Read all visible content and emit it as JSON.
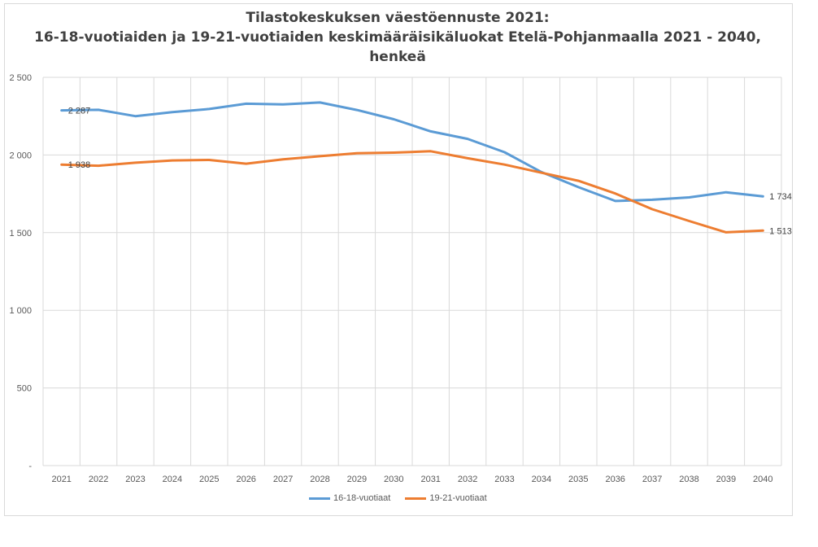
{
  "chart_data": {
    "type": "line",
    "title_lines": [
      "Tilastokeskuksen väestöennuste 2021:",
      "16-18-vuotiaiden ja 19-21-vuotiaiden keskimääräisikäluokat Etelä-Pohjanmaalla 2021 - 2040,",
      "henkeä"
    ],
    "categories": [
      "2021",
      "2022",
      "2023",
      "2024",
      "2025",
      "2026",
      "2027",
      "2028",
      "2029",
      "2030",
      "2031",
      "2032",
      "2033",
      "2034",
      "2035",
      "2036",
      "2037",
      "2038",
      "2039",
      "2040"
    ],
    "yticks": [
      0,
      500,
      1000,
      1500,
      2000,
      2500
    ],
    "ytick_labels": [
      "-",
      "500",
      "1 000",
      "1 500",
      "2 000",
      "2 500"
    ],
    "ylim": [
      0,
      2500
    ],
    "grid": true,
    "legend_position": "bottom",
    "series": [
      {
        "name": "16-18-vuotiaat",
        "color": "#5b9bd5",
        "values": [
          2287,
          2291,
          2250,
          2276,
          2296,
          2330,
          2326,
          2338,
          2290,
          2230,
          2152,
          2104,
          2018,
          1890,
          1793,
          1704,
          1712,
          1727,
          1760,
          1734
        ],
        "labels": [
          {
            "index": 0,
            "text": "2 287"
          },
          {
            "index": 19,
            "text": "1 734"
          }
        ]
      },
      {
        "name": "19-21-vuotiaat",
        "color": "#ed7d31",
        "values": [
          1938,
          1931,
          1950,
          1965,
          1968,
          1944,
          1972,
          1992,
          2011,
          2015,
          2024,
          1979,
          1938,
          1886,
          1834,
          1752,
          1651,
          1575,
          1502,
          1513
        ],
        "labels": [
          {
            "index": 0,
            "text": "1 938"
          },
          {
            "index": 19,
            "text": "1 513"
          }
        ]
      }
    ]
  }
}
